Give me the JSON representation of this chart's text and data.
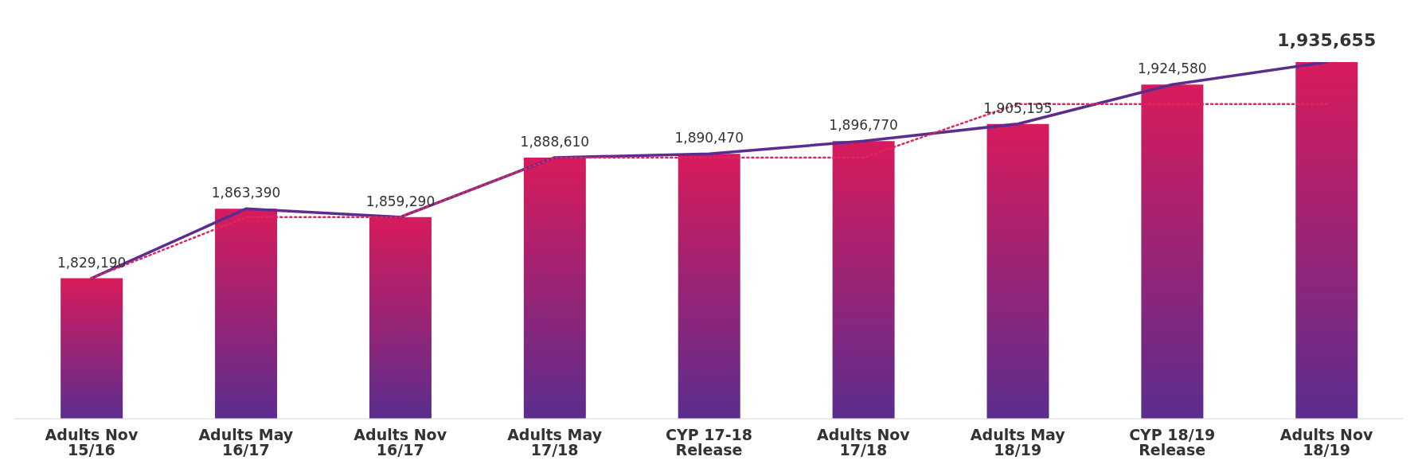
{
  "chart_data": {
    "type": "bar",
    "categories": [
      "Adults Nov 15/16",
      "Adults May 16/17",
      "Adults Nov 16/17",
      "Adults May 17/18",
      "CYP 17-18 Release",
      "Adults Nov 17/18",
      "Adults May 18/19",
      "CYP 18/19 Release",
      "Adults Nov 18/19"
    ],
    "series": [
      {
        "color": "#d81b5c",
        "values": [
          1829190,
          1863390,
          1859290,
          1888610,
          1890470,
          1896770,
          1905195,
          1924580,
          1935655
        ],
        "value_labels": [
          "1,829,190",
          "1,863,390",
          "1,859,290",
          "1,888,610",
          "1,890,470",
          "1,896,770",
          "1,905,195",
          "1,924,580",
          "1,935,655"
        ]
      },
      {
        "type": "line",
        "color": "#5b2d8e",
        "line_style": "solid",
        "values": [
          1829190,
          1863390,
          1859290,
          1888610,
          1890470,
          1896770,
          1905195,
          1924580,
          1935655
        ]
      },
      {
        "type": "line",
        "color": "#e0245e",
        "line_style": "dotted",
        "values": [
          1829190,
          1859290,
          1859290,
          1888610,
          1888610,
          1888610,
          1915000,
          1915000,
          1915000
        ]
      }
    ],
    "ylim": [
      1760000,
      1935655
    ],
    "tick_labels": "x",
    "grid": false,
    "legend": false,
    "marker": "none"
  }
}
